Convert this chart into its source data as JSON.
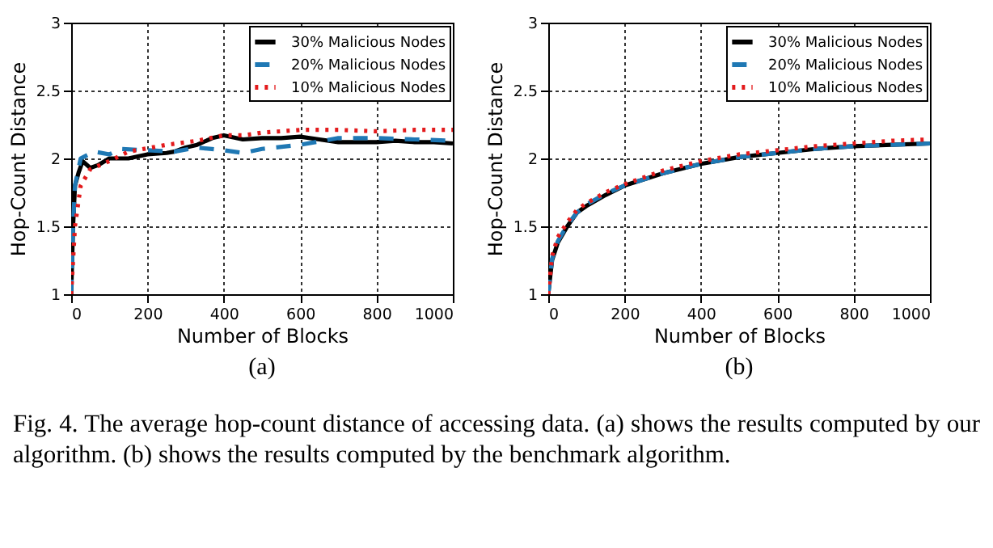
{
  "chart_data": [
    {
      "type": "line",
      "xlabel": "Number of Blocks",
      "ylabel": "Hop-Count Distance",
      "annotations": [
        "(a)"
      ],
      "xlim": [
        0,
        1000
      ],
      "ylim": [
        1,
        3
      ],
      "xticks": [
        0,
        200,
        400,
        600,
        800,
        1000
      ],
      "yticks": [
        1,
        1.5,
        2,
        2.5,
        3
      ],
      "grid": true,
      "legend": "top right",
      "marker": "none",
      "series": [
        {
          "name": "30% Malicious Nodes",
          "color": "#000000",
          "line_style": "solid",
          "x": [
            0,
            5,
            10,
            20,
            30,
            50,
            70,
            100,
            150,
            200,
            250,
            270,
            300,
            330,
            370,
            400,
            450,
            500,
            550,
            600,
            650,
            700,
            800,
            850,
            900,
            950,
            1000
          ],
          "values": [
            1,
            1.5,
            1.8,
            1.9,
            1.98,
            1.93,
            1.95,
            2.0,
            2.0,
            2.03,
            2.04,
            2.05,
            2.08,
            2.1,
            2.15,
            2.17,
            2.14,
            2.15,
            2.15,
            2.16,
            2.14,
            2.12,
            2.12,
            2.13,
            2.12,
            2.12,
            2.11
          ]
        },
        {
          "name": "20% Malicious Nodes",
          "color": "#1f78b4",
          "line_style": "dashed",
          "x": [
            0,
            5,
            10,
            25,
            60,
            100,
            130,
            200,
            270,
            330,
            400,
            450,
            500,
            600,
            700,
            800,
            900,
            1000
          ],
          "values": [
            1,
            1.5,
            1.8,
            2.0,
            2.05,
            2.03,
            2.07,
            2.06,
            2.05,
            2.08,
            2.06,
            2.04,
            2.07,
            2.1,
            2.15,
            2.15,
            2.14,
            2.13
          ]
        },
        {
          "name": "10% Malicious Nodes",
          "color": "#e31a1c",
          "line_style": "dotted",
          "x": [
            0,
            10,
            25,
            50,
            100,
            150,
            250,
            330,
            400,
            450,
            500,
            600,
            700,
            800,
            900,
            1000
          ],
          "values": [
            1,
            1.5,
            1.8,
            1.92,
            1.98,
            2.05,
            2.1,
            2.13,
            2.17,
            2.17,
            2.19,
            2.21,
            2.21,
            2.2,
            2.21,
            2.21
          ]
        }
      ]
    },
    {
      "type": "line",
      "xlabel": "Number of Blocks",
      "ylabel": "Hop-Count Distance",
      "annotations": [
        "(b)",
        "Fig. 4.  The average hop-count distance of accessing data. (a) shows the results computed by our algorithm. (b) shows the results computed by the benchmark algorithm."
      ],
      "xlim": [
        0,
        1000
      ],
      "ylim": [
        1,
        3
      ],
      "xticks": [
        0,
        200,
        400,
        600,
        800,
        1000
      ],
      "yticks": [
        1,
        1.5,
        2,
        2.5,
        3
      ],
      "grid": true,
      "legend": "top right",
      "marker": "none",
      "series": [
        {
          "name": "30% Malicious Nodes",
          "color": "#000000",
          "line_style": "solid",
          "x": [
            0,
            10,
            25,
            50,
            75,
            100,
            150,
            200,
            300,
            400,
            500,
            600,
            700,
            800,
            900,
            1000
          ],
          "values": [
            1,
            1.25,
            1.38,
            1.5,
            1.6,
            1.65,
            1.73,
            1.8,
            1.89,
            1.96,
            2.01,
            2.04,
            2.07,
            2.09,
            2.1,
            2.11
          ]
        },
        {
          "name": "20% Malicious Nodes",
          "color": "#1f78b4",
          "line_style": "dashed",
          "x": [
            0,
            10,
            25,
            50,
            75,
            100,
            150,
            200,
            300,
            400,
            500,
            600,
            700,
            800,
            900,
            1000
          ],
          "values": [
            1,
            1.26,
            1.39,
            1.51,
            1.6,
            1.66,
            1.74,
            1.8,
            1.89,
            1.96,
            2.01,
            2.04,
            2.07,
            2.09,
            2.1,
            2.11
          ]
        },
        {
          "name": "10% Malicious Nodes",
          "color": "#e31a1c",
          "line_style": "dotted",
          "x": [
            0,
            10,
            25,
            50,
            75,
            100,
            150,
            200,
            300,
            400,
            500,
            600,
            700,
            800,
            900,
            1000
          ],
          "values": [
            1,
            1.28,
            1.42,
            1.53,
            1.62,
            1.67,
            1.75,
            1.81,
            1.91,
            1.98,
            2.03,
            2.06,
            2.09,
            2.11,
            2.13,
            2.14
          ]
        }
      ]
    }
  ]
}
